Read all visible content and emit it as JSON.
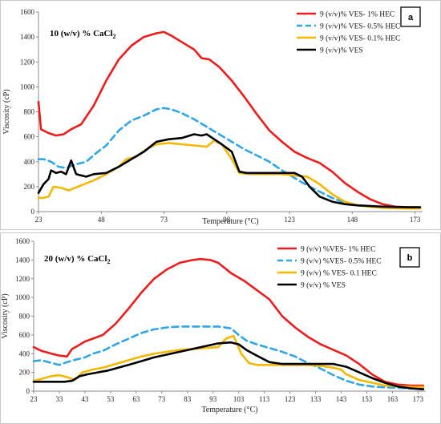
{
  "chart_data": [
    {
      "type": "line",
      "panel_label": "a",
      "condition_label": "10 (w/v) % CaCl",
      "condition_sub": "2",
      "xlabel": "Temperature (°C)",
      "ylabel": "Viscosity (cP)",
      "xlim": [
        23,
        176
      ],
      "ylim": [
        0,
        1600
      ],
      "xticks": [
        23,
        48,
        73,
        98,
        123,
        148,
        173
      ],
      "yticks": [
        0,
        200,
        400,
        600,
        800,
        1000,
        1200,
        1400,
        1600
      ],
      "grid": false,
      "legend_position": "top-right",
      "series": [
        {
          "name": "9 (v/v)% VES- 1% HEC",
          "color": "#ee1c1c",
          "dash": "solid",
          "x": [
            23,
            24,
            27,
            30,
            33,
            36,
            40,
            45,
            50,
            55,
            60,
            65,
            70,
            73,
            76,
            80,
            85,
            88,
            91,
            95,
            100,
            105,
            110,
            115,
            120,
            125,
            130,
            135,
            140,
            145,
            150,
            155,
            160,
            165,
            170,
            175
          ],
          "y": [
            880,
            660,
            630,
            610,
            620,
            660,
            700,
            850,
            1050,
            1220,
            1330,
            1400,
            1430,
            1440,
            1410,
            1360,
            1300,
            1230,
            1220,
            1160,
            1050,
            920,
            780,
            650,
            560,
            480,
            430,
            390,
            320,
            230,
            160,
            100,
            60,
            40,
            35,
            35
          ]
        },
        {
          "name": "9 (v/v)% VES- 0.5% HEC",
          "color": "#2ea6e8",
          "dash": "dashed",
          "x": [
            23,
            25,
            28,
            31,
            34,
            38,
            42,
            46,
            50,
            55,
            60,
            65,
            70,
            73,
            76,
            80,
            85,
            90,
            95,
            100,
            105,
            110,
            115,
            120,
            125,
            130,
            135,
            140,
            145,
            150,
            160,
            170,
            175
          ],
          "y": [
            420,
            420,
            400,
            360,
            350,
            380,
            400,
            470,
            530,
            650,
            730,
            770,
            820,
            830,
            820,
            790,
            740,
            680,
            620,
            560,
            500,
            450,
            400,
            330,
            270,
            210,
            160,
            110,
            70,
            50,
            30,
            30,
            30
          ]
        },
        {
          "name": "9 (v/v)% VES- 0.1% HEC",
          "color": "#f5b800",
          "dash": "solid",
          "x": [
            23,
            25,
            27,
            29,
            32,
            35,
            40,
            45,
            50,
            55,
            58,
            62,
            66,
            70,
            75,
            80,
            85,
            90,
            93,
            96,
            100,
            103,
            107,
            110,
            115,
            120,
            125,
            130,
            135,
            140,
            145,
            150,
            160,
            170,
            175
          ],
          "y": [
            110,
            110,
            120,
            200,
            190,
            170,
            210,
            250,
            300,
            360,
            420,
            440,
            500,
            540,
            550,
            540,
            530,
            520,
            570,
            540,
            420,
            310,
            300,
            300,
            300,
            300,
            290,
            280,
            220,
            140,
            80,
            50,
            30,
            25,
            25
          ]
        },
        {
          "name": "9 (v/v)% VES",
          "color": "#000000",
          "dash": "solid",
          "x": [
            23,
            25,
            27,
            28,
            30,
            32,
            34,
            36,
            38,
            40,
            42,
            45,
            50,
            55,
            60,
            65,
            70,
            75,
            80,
            85,
            88,
            90,
            93,
            96,
            100,
            103,
            106,
            110,
            115,
            120,
            125,
            128,
            131,
            135,
            140,
            145,
            150,
            160,
            170,
            175
          ],
          "y": [
            150,
            220,
            260,
            330,
            310,
            320,
            300,
            410,
            300,
            290,
            280,
            300,
            310,
            360,
            420,
            480,
            560,
            580,
            590,
            620,
            610,
            620,
            580,
            540,
            480,
            320,
            310,
            310,
            310,
            310,
            310,
            280,
            200,
            120,
            80,
            60,
            50,
            40,
            35,
            35
          ]
        }
      ]
    },
    {
      "type": "line",
      "panel_label": "b",
      "condition_label": "20 (w/v) % CaCl",
      "condition_sub": "2",
      "xlabel": "Temperature (°C)",
      "ylabel": "Viscosity (cP)",
      "xlim": [
        23,
        176
      ],
      "ylim": [
        0,
        1600
      ],
      "xticks": [
        23,
        33,
        43,
        53,
        63,
        73,
        83,
        93,
        103,
        113,
        123,
        133,
        143,
        153,
        163,
        173
      ],
      "yticks": [
        0,
        200,
        400,
        600,
        800,
        1000,
        1200,
        1400,
        1600
      ],
      "grid": false,
      "legend_position": "top-right",
      "series": [
        {
          "name": "9 (v/v) %VES- 1% HEC",
          "color": "#ee1c1c",
          "dash": "solid",
          "x": [
            23,
            26,
            30,
            33,
            36,
            38,
            40,
            43,
            46,
            50,
            55,
            60,
            65,
            70,
            75,
            80,
            85,
            88,
            92,
            95,
            100,
            105,
            110,
            115,
            120,
            125,
            130,
            135,
            140,
            145,
            150,
            155,
            160,
            165,
            170,
            175
          ],
          "y": [
            470,
            430,
            400,
            380,
            370,
            450,
            480,
            530,
            560,
            600,
            720,
            880,
            1050,
            1200,
            1300,
            1370,
            1400,
            1410,
            1400,
            1370,
            1260,
            1180,
            1080,
            980,
            800,
            680,
            580,
            500,
            440,
            380,
            290,
            180,
            100,
            70,
            60,
            60
          ]
        },
        {
          "name": "9 (v/v) %VES- 0.5% HEC",
          "color": "#2ea6e8",
          "dash": "dashed",
          "x": [
            23,
            26,
            30,
            33,
            36,
            40,
            43,
            46,
            50,
            55,
            60,
            65,
            70,
            75,
            80,
            85,
            90,
            95,
            100,
            103,
            106,
            110,
            115,
            120,
            125,
            130,
            135,
            140,
            145,
            150,
            155,
            160,
            170,
            175
          ],
          "y": [
            320,
            330,
            300,
            280,
            310,
            340,
            360,
            400,
            430,
            500,
            560,
            620,
            660,
            680,
            690,
            690,
            690,
            690,
            670,
            600,
            540,
            500,
            460,
            420,
            370,
            300,
            240,
            170,
            110,
            70,
            50,
            40,
            30,
            30
          ]
        },
        {
          "name": "9 (v/v) % VES- 0.1 HEC",
          "color": "#f5b800",
          "dash": "solid",
          "x": [
            23,
            26,
            30,
            33,
            36,
            39,
            42,
            46,
            50,
            55,
            60,
            65,
            70,
            75,
            80,
            85,
            90,
            95,
            98,
            101,
            104,
            107,
            110,
            115,
            120,
            125,
            130,
            135,
            140,
            143,
            145,
            150,
            160,
            170,
            175
          ],
          "y": [
            110,
            130,
            160,
            170,
            150,
            120,
            200,
            230,
            250,
            290,
            330,
            370,
            400,
            420,
            440,
            450,
            460,
            470,
            560,
            590,
            400,
            300,
            280,
            280,
            280,
            280,
            280,
            270,
            250,
            230,
            180,
            120,
            60,
            45,
            45
          ]
        },
        {
          "name": "9 (v/v) % VES",
          "color": "#000000",
          "dash": "solid",
          "x": [
            23,
            27,
            31,
            35,
            38,
            41,
            44,
            48,
            52,
            56,
            60,
            65,
            70,
            75,
            80,
            85,
            90,
            95,
            100,
            103,
            106,
            110,
            115,
            120,
            125,
            130,
            135,
            140,
            145,
            150,
            155,
            160,
            165,
            170,
            175
          ],
          "y": [
            100,
            100,
            100,
            100,
            110,
            160,
            180,
            200,
            220,
            250,
            280,
            320,
            360,
            390,
            420,
            450,
            480,
            510,
            520,
            500,
            440,
            380,
            310,
            290,
            290,
            290,
            290,
            290,
            260,
            200,
            140,
            90,
            50,
            30,
            20
          ]
        }
      ]
    }
  ]
}
